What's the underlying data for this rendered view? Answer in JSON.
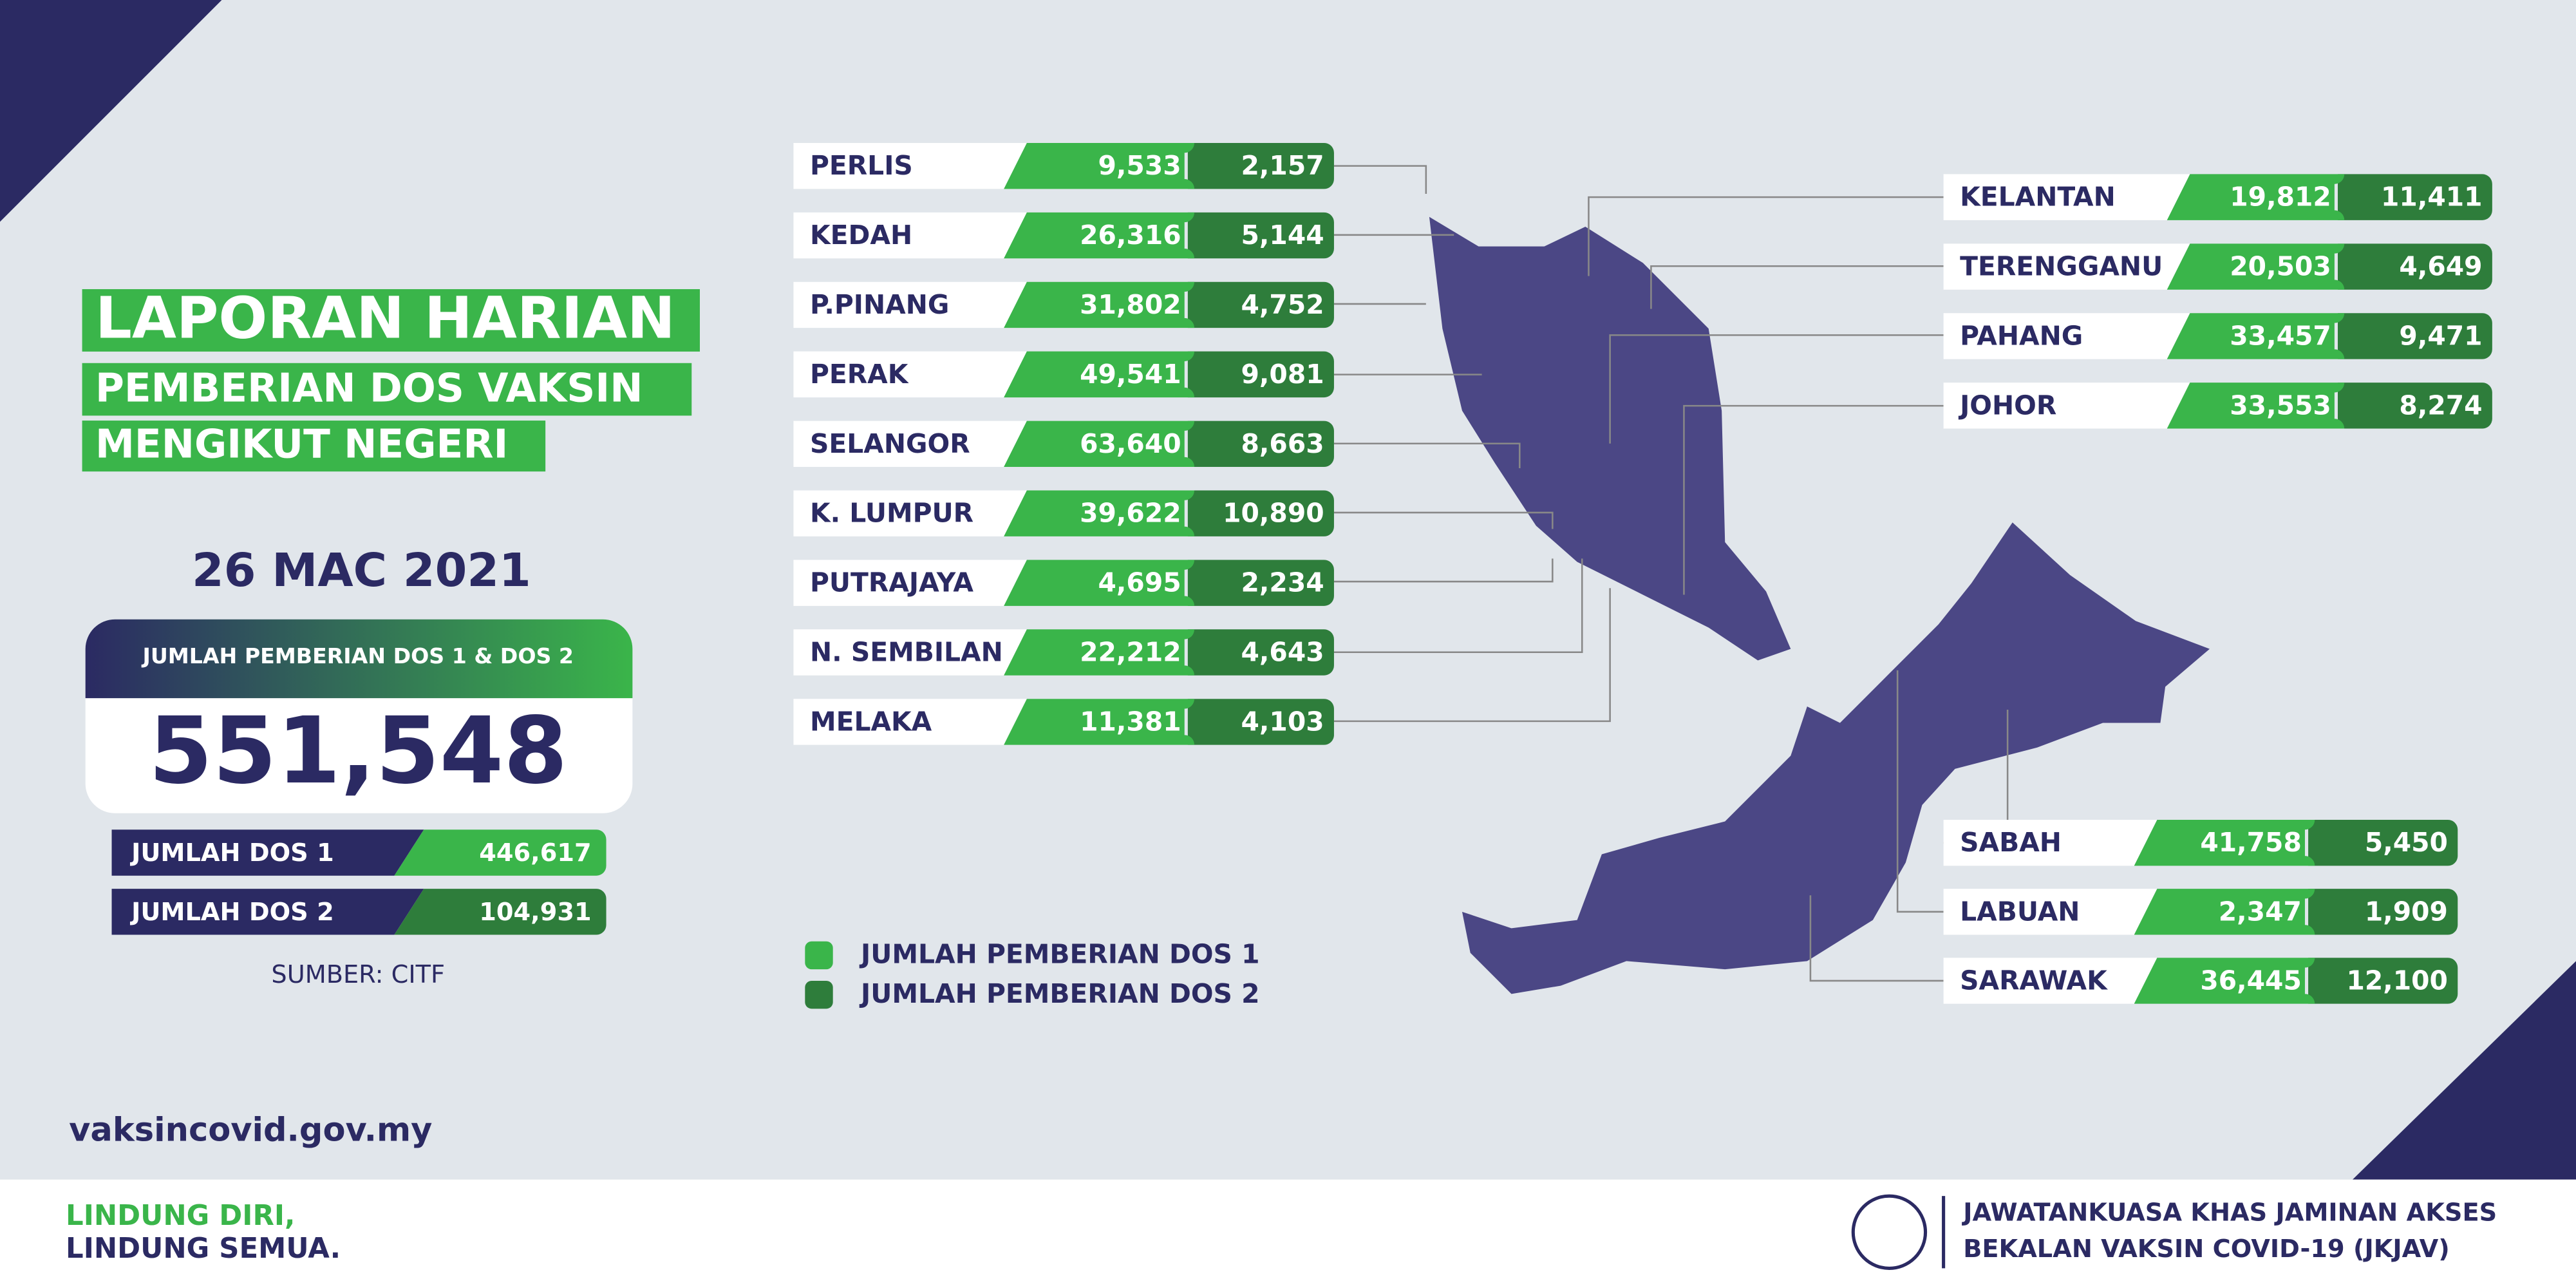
{
  "header": {
    "title": [
      "LAPORAN HARIAN",
      "PEMBERIAN DOS VAKSIN",
      "MENGIKUT NEGERI"
    ],
    "date": "26 MAC 2021"
  },
  "summary": {
    "total_label": "JUMLAH PEMBERIAN DOS 1 & DOS 2",
    "total": "551,548",
    "doses": [
      {
        "label": "JUMLAH DOS 1",
        "value": "446,617"
      },
      {
        "label": "JUMLAH DOS 2",
        "value": "104,931"
      }
    ],
    "source": "SUMBER: CITF"
  },
  "legend": [
    "JUMLAH PEMBERIAN DOS 1",
    "JUMLAH PEMBERIAN DOS 2"
  ],
  "states": [
    {
      "name": "PERLIS",
      "dose1": "9,533",
      "dose2": "2,157"
    },
    {
      "name": "KEDAH",
      "dose1": "26,316",
      "dose2": "5,144"
    },
    {
      "name": "P.PINANG",
      "dose1": "31,802",
      "dose2": "4,752"
    },
    {
      "name": "PERAK",
      "dose1": "49,541",
      "dose2": "9,081"
    },
    {
      "name": "SELANGOR",
      "dose1": "63,640",
      "dose2": "8,663"
    },
    {
      "name": "K. LUMPUR",
      "dose1": "39,622",
      "dose2": "10,890"
    },
    {
      "name": "PUTRAJAYA",
      "dose1": "4,695",
      "dose2": "2,234"
    },
    {
      "name": "N. SEMBILAN",
      "dose1": "22,212",
      "dose2": "4,643"
    },
    {
      "name": "MELAKA",
      "dose1": "11,381",
      "dose2": "4,103"
    },
    {
      "name": "KELANTAN",
      "dose1": "19,812",
      "dose2": "11,411"
    },
    {
      "name": "TERENGGANU",
      "dose1": "20,503",
      "dose2": "4,649"
    },
    {
      "name": "PAHANG",
      "dose1": "33,457",
      "dose2": "9,471"
    },
    {
      "name": "JOHOR",
      "dose1": "33,553",
      "dose2": "8,274"
    },
    {
      "name": "SABAH",
      "dose1": "41,758",
      "dose2": "5,450"
    },
    {
      "name": "LABUAN",
      "dose1": "2,347",
      "dose2": "1,909"
    },
    {
      "name": "SARAWAK",
      "dose1": "36,445",
      "dose2": "12,100"
    }
  ],
  "footer": {
    "website": "vaksincovid.gov.my",
    "slogan": [
      "LINDUNG DIRI,",
      "LINDUNG SEMUA."
    ],
    "agency": [
      "JAWATANKUASA KHAS JAMINAN AKSES",
      "BEKALAN VAKSIN COVID-19 (JKJAV)"
    ]
  }
}
